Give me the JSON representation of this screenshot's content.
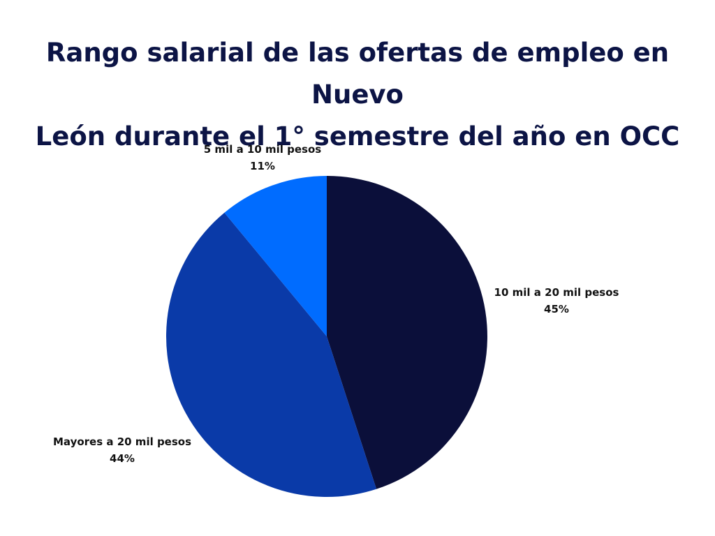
{
  "chart_data": {
    "type": "pie",
    "title_lines": [
      "Rango salarial de las ofertas de empleo en Nuevo",
      "León durante el 1° semestre del año en OCC"
    ],
    "slices": [
      {
        "label": "10 mil a 20 mil pesos",
        "value": 45,
        "value_label": "45%",
        "color": "#0b0f3a"
      },
      {
        "label": "Mayores a 20 mil pesos",
        "value": 44,
        "value_label": "44%",
        "color": "#0a3aa8"
      },
      {
        "label": "5 mil a 10 mil pesos",
        "value": 11,
        "value_label": "11%",
        "color": "#006cff"
      }
    ],
    "start_angle": "12 o'clock",
    "direction": "clockwise"
  }
}
